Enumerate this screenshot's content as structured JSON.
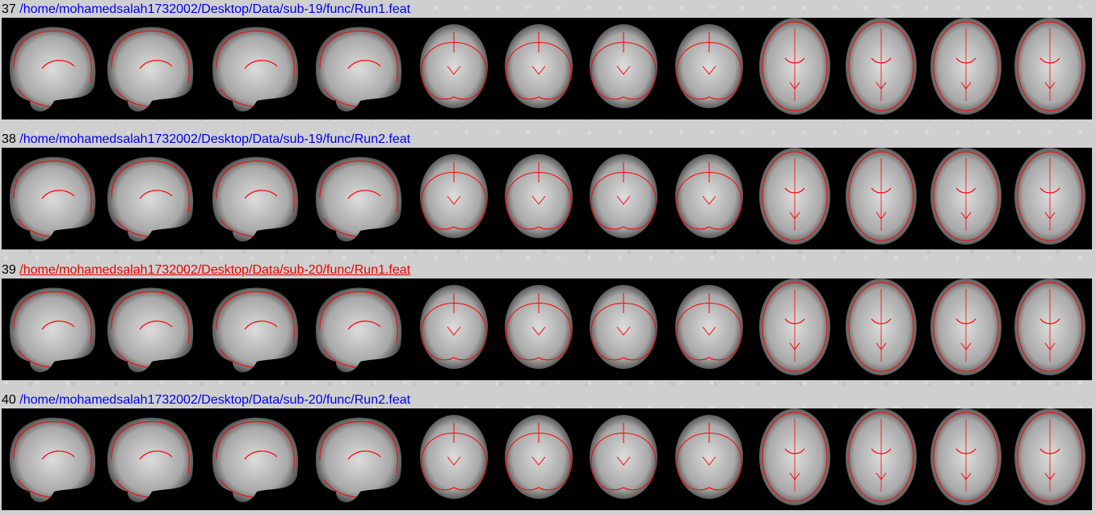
{
  "report": {
    "entries": [
      {
        "number": "37",
        "path": "/home/mohamedsalah1732002/Desktop/Data/sub-19/func/Run1.feat",
        "link_color": "#0000ee",
        "underlined": false,
        "thumbnails": [
          {
            "view": "sagittal",
            "icon": "brain-sagittal"
          },
          {
            "view": "sagittal",
            "icon": "brain-sagittal"
          },
          {
            "view": "sagittal",
            "icon": "brain-sagittal"
          },
          {
            "view": "sagittal",
            "icon": "brain-sagittal"
          },
          {
            "view": "coronal",
            "icon": "brain-coronal"
          },
          {
            "view": "coronal",
            "icon": "brain-coronal"
          },
          {
            "view": "coronal",
            "icon": "brain-coronal"
          },
          {
            "view": "coronal",
            "icon": "brain-coronal"
          },
          {
            "view": "axial",
            "icon": "brain-axial"
          },
          {
            "view": "axial",
            "icon": "brain-axial"
          },
          {
            "view": "axial",
            "icon": "brain-axial"
          },
          {
            "view": "axial",
            "icon": "brain-axial"
          }
        ]
      },
      {
        "number": "38",
        "path": "/home/mohamedsalah1732002/Desktop/Data/sub-19/func/Run2.feat",
        "link_color": "#0000ee",
        "underlined": false,
        "thumbnails": [
          {
            "view": "sagittal",
            "icon": "brain-sagittal"
          },
          {
            "view": "sagittal",
            "icon": "brain-sagittal"
          },
          {
            "view": "sagittal",
            "icon": "brain-sagittal"
          },
          {
            "view": "sagittal",
            "icon": "brain-sagittal"
          },
          {
            "view": "coronal",
            "icon": "brain-coronal"
          },
          {
            "view": "coronal",
            "icon": "brain-coronal"
          },
          {
            "view": "coronal",
            "icon": "brain-coronal"
          },
          {
            "view": "coronal",
            "icon": "brain-coronal"
          },
          {
            "view": "axial",
            "icon": "brain-axial"
          },
          {
            "view": "axial",
            "icon": "brain-axial"
          },
          {
            "view": "axial",
            "icon": "brain-axial"
          },
          {
            "view": "axial",
            "icon": "brain-axial"
          }
        ]
      },
      {
        "number": "39",
        "path": "/home/mohamedsalah1732002/Desktop/Data/sub-20/func/Run1.feat",
        "link_color": "#ee0000",
        "underlined": true,
        "thumbnails": [
          {
            "view": "sagittal",
            "icon": "brain-sagittal"
          },
          {
            "view": "sagittal",
            "icon": "brain-sagittal"
          },
          {
            "view": "sagittal",
            "icon": "brain-sagittal"
          },
          {
            "view": "sagittal",
            "icon": "brain-sagittal"
          },
          {
            "view": "coronal",
            "icon": "brain-coronal"
          },
          {
            "view": "coronal",
            "icon": "brain-coronal"
          },
          {
            "view": "coronal",
            "icon": "brain-coronal"
          },
          {
            "view": "coronal",
            "icon": "brain-coronal"
          },
          {
            "view": "axial",
            "icon": "brain-axial"
          },
          {
            "view": "axial",
            "icon": "brain-axial"
          },
          {
            "view": "axial",
            "icon": "brain-axial"
          },
          {
            "view": "axial",
            "icon": "brain-axial"
          }
        ]
      },
      {
        "number": "40",
        "path": "/home/mohamedsalah1732002/Desktop/Data/sub-20/func/Run2.feat",
        "link_color": "#0000ee",
        "underlined": false,
        "thumbnails": [
          {
            "view": "sagittal",
            "icon": "brain-sagittal"
          },
          {
            "view": "sagittal",
            "icon": "brain-sagittal"
          },
          {
            "view": "sagittal",
            "icon": "brain-sagittal"
          },
          {
            "view": "sagittal",
            "icon": "brain-sagittal"
          },
          {
            "view": "coronal",
            "icon": "brain-coronal"
          },
          {
            "view": "coronal",
            "icon": "brain-coronal"
          },
          {
            "view": "coronal",
            "icon": "brain-coronal"
          },
          {
            "view": "coronal",
            "icon": "brain-coronal"
          },
          {
            "view": "axial",
            "icon": "brain-axial"
          },
          {
            "view": "axial",
            "icon": "brain-axial"
          },
          {
            "view": "axial",
            "icon": "brain-axial"
          },
          {
            "view": "axial",
            "icon": "brain-axial"
          }
        ]
      }
    ]
  },
  "colors": {
    "background": "#cfcfcf",
    "strip": "#000000",
    "outline": "#ff0000",
    "link": "#0000ee",
    "visited_link": "#ee0000"
  }
}
